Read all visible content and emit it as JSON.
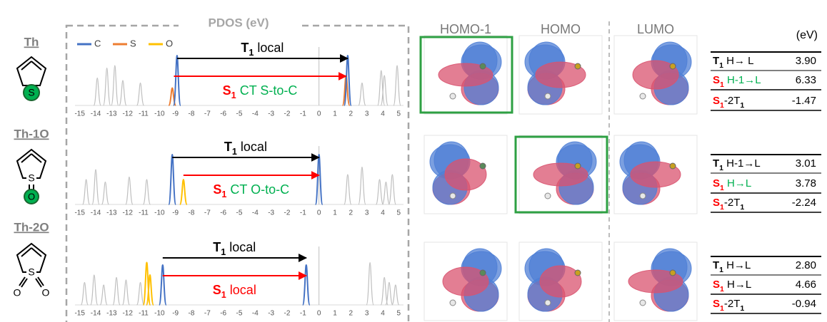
{
  "header": {
    "pdos_title": "PDOS (eV)",
    "orbitals": [
      "HOMO-1",
      "HOMO",
      "LUMO"
    ],
    "unit": "(eV)"
  },
  "legend": [
    {
      "name": "C",
      "color": "#4472c4"
    },
    {
      "name": "S",
      "color": "#ed7d31"
    },
    {
      "name": "O",
      "color": "#ffc000"
    }
  ],
  "background_color": "#bfbfbf",
  "rows": [
    {
      "molecule": "Th",
      "xlim": [
        -15.3,
        5.3
      ],
      "xticks": [
        -15,
        -14,
        -13,
        -12,
        -11,
        -10,
        -9,
        -8,
        -7,
        -6,
        -5,
        -4,
        -3,
        -2,
        -1,
        0,
        1,
        2,
        3,
        4,
        5
      ],
      "peaks": {
        "background": [
          [
            -13.9,
            0.55
          ],
          [
            -13.3,
            0.75
          ],
          [
            -12.8,
            0.8
          ],
          [
            -12.3,
            0.5
          ],
          [
            -11.2,
            0.45
          ],
          [
            2.7,
            0.45
          ],
          [
            3.9,
            0.7
          ],
          [
            4.1,
            0.6
          ],
          [
            4.9,
            0.8
          ]
        ],
        "C": [
          [
            -8.9,
            1
          ],
          [
            1.8,
            1
          ]
        ],
        "S": [
          [
            -9.2,
            0.35
          ],
          [
            1.7,
            0.6
          ]
        ],
        "O": []
      },
      "t1": {
        "from": -8.9,
        "to": 1.8,
        "label": [
          {
            "text": "T",
            "color": "#000000",
            "bold": true
          },
          {
            "text": "1",
            "color": "#000000",
            "bold": true,
            "sub": true
          },
          {
            "text": " local",
            "color": "#000000"
          }
        ]
      },
      "s1": {
        "from": -9.1,
        "to": 1.7,
        "label": [
          {
            "text": "S",
            "color": "#ff0000",
            "bold": true
          },
          {
            "text": "1",
            "color": "#ff0000",
            "bold": true,
            "sub": true
          },
          {
            "text": " CT S-to-C",
            "color": "#00b050"
          }
        ]
      },
      "highlight": 0,
      "table": [
        {
          "label": [
            {
              "text": "T",
              "color": "#000000",
              "bold": true
            },
            {
              "text": "1",
              "color": "#000000",
              "bold": true,
              "sub": true
            },
            {
              "text": " H→ L",
              "color": "#000000"
            }
          ],
          "value": "3.90"
        },
        {
          "label": [
            {
              "text": "S",
              "color": "#ff0000",
              "bold": true
            },
            {
              "text": "1",
              "color": "#ff0000",
              "bold": true,
              "sub": true
            },
            {
              "text": " H-1→L",
              "color": "#00b050"
            }
          ],
          "value": "6.33"
        },
        {
          "label": [
            {
              "text": "S",
              "color": "#ff0000",
              "bold": true
            },
            {
              "text": "1",
              "color": "#ff0000",
              "bold": true,
              "sub": true
            },
            {
              "text": "-2T",
              "color": "#000000"
            },
            {
              "text": "1",
              "color": "#000000",
              "bold": true,
              "sub": true
            }
          ],
          "value": "-1.47"
        }
      ]
    },
    {
      "molecule": "Th-1O",
      "xlim": [
        -15.3,
        5.3
      ],
      "xticks": [
        -15,
        -14,
        -13,
        -12,
        -11,
        -10,
        -9,
        -8,
        -7,
        -6,
        -5,
        -4,
        -3,
        -2,
        -1,
        0,
        1,
        2,
        3,
        4,
        5
      ],
      "peaks": {
        "background": [
          [
            -14.6,
            0.5
          ],
          [
            -14.0,
            0.7
          ],
          [
            -13.4,
            0.45
          ],
          [
            -11.9,
            0.55
          ],
          [
            -10.8,
            0.5
          ],
          [
            1.8,
            0.6
          ],
          [
            2.7,
            0.75
          ],
          [
            3.8,
            0.5
          ],
          [
            4.2,
            0.45
          ],
          [
            4.6,
            0.6
          ]
        ],
        "C": [
          [
            -9.2,
            1
          ],
          [
            0,
            1
          ]
        ],
        "S": [],
        "O": [
          [
            -8.5,
            0.5
          ]
        ]
      },
      "t1": {
        "from": -9.2,
        "to": 0,
        "label": [
          {
            "text": "T",
            "color": "#000000",
            "bold": true
          },
          {
            "text": "1",
            "color": "#000000",
            "bold": true,
            "sub": true
          },
          {
            "text": " local",
            "color": "#000000"
          }
        ]
      },
      "s1": {
        "from": -8.5,
        "to": 0,
        "label": [
          {
            "text": "S",
            "color": "#ff0000",
            "bold": true
          },
          {
            "text": "1",
            "color": "#ff0000",
            "bold": true,
            "sub": true
          },
          {
            "text": " CT O-to-C",
            "color": "#00b050"
          }
        ]
      },
      "highlight": 1,
      "table": [
        {
          "label": [
            {
              "text": "T",
              "color": "#000000",
              "bold": true
            },
            {
              "text": "1",
              "color": "#000000",
              "bold": true,
              "sub": true
            },
            {
              "text": " H-1→L",
              "color": "#000000"
            }
          ],
          "value": "3.01"
        },
        {
          "label": [
            {
              "text": "S",
              "color": "#ff0000",
              "bold": true
            },
            {
              "text": "1",
              "color": "#ff0000",
              "bold": true,
              "sub": true
            },
            {
              "text": " H→L",
              "color": "#00b050"
            }
          ],
          "value": "3.78"
        },
        {
          "label": [
            {
              "text": "S",
              "color": "#ff0000",
              "bold": true
            },
            {
              "text": "1",
              "color": "#ff0000",
              "bold": true,
              "sub": true
            },
            {
              "text": "-2T",
              "color": "#000000"
            },
            {
              "text": "1",
              "color": "#000000",
              "bold": true,
              "sub": true
            }
          ],
          "value": "-2.24"
        }
      ]
    },
    {
      "molecule": "Th-2O",
      "xlim": [
        -15.3,
        5.3
      ],
      "xticks": [
        -15,
        -14,
        -13,
        -12,
        -11,
        -10,
        -9,
        -8,
        -7,
        -6,
        -5,
        -4,
        -3,
        -2,
        -1,
        0,
        1,
        2,
        3,
        4,
        5
      ],
      "peaks": {
        "background": [
          [
            -14.7,
            0.45
          ],
          [
            -14.1,
            0.6
          ],
          [
            -13.5,
            0.4
          ],
          [
            -12.7,
            0.55
          ],
          [
            -12.1,
            0.5
          ],
          [
            -11.2,
            0.45
          ],
          [
            3.2,
            0.85
          ],
          [
            4.1,
            0.55
          ],
          [
            4.4,
            0.45
          ],
          [
            4.8,
            0.4
          ]
        ],
        "C": [
          [
            -9.8,
            0.8
          ],
          [
            -0.8,
            0.8
          ]
        ],
        "S": [],
        "O": [
          [
            -10.8,
            0.85
          ],
          [
            -10.6,
            0.6
          ]
        ]
      },
      "t1": {
        "from": -9.8,
        "to": -0.8,
        "label": [
          {
            "text": "T",
            "color": "#000000",
            "bold": true
          },
          {
            "text": "1",
            "color": "#000000",
            "bold": true,
            "sub": true
          },
          {
            "text": " local",
            "color": "#000000"
          }
        ]
      },
      "s1": {
        "from": -9.8,
        "to": -0.8,
        "label": [
          {
            "text": "S",
            "color": "#ff0000",
            "bold": true
          },
          {
            "text": "1",
            "color": "#ff0000",
            "bold": true,
            "sub": true
          },
          {
            "text": " local",
            "color": "#ff0000"
          }
        ]
      },
      "table": [
        {
          "label": [
            {
              "text": "T",
              "color": "#000000",
              "bold": true
            },
            {
              "text": "1",
              "color": "#000000",
              "bold": true,
              "sub": true
            },
            {
              "text": " H→L",
              "color": "#000000"
            }
          ],
          "value": "2.80"
        },
        {
          "label": [
            {
              "text": "S",
              "color": "#ff0000",
              "bold": true
            },
            {
              "text": "1",
              "color": "#ff0000",
              "bold": true,
              "sub": true
            },
            {
              "text": " H→L",
              "color": "#000000"
            }
          ],
          "value": "4.66"
        },
        {
          "label": [
            {
              "text": "S",
              "color": "#ff0000",
              "bold": true
            },
            {
              "text": "1",
              "color": "#ff0000",
              "bold": true,
              "sub": true
            },
            {
              "text": "-2T",
              "color": "#000000"
            },
            {
              "text": "1",
              "color": "#000000",
              "bold": true,
              "sub": true
            }
          ],
          "value": "-0.94"
        }
      ]
    }
  ]
}
